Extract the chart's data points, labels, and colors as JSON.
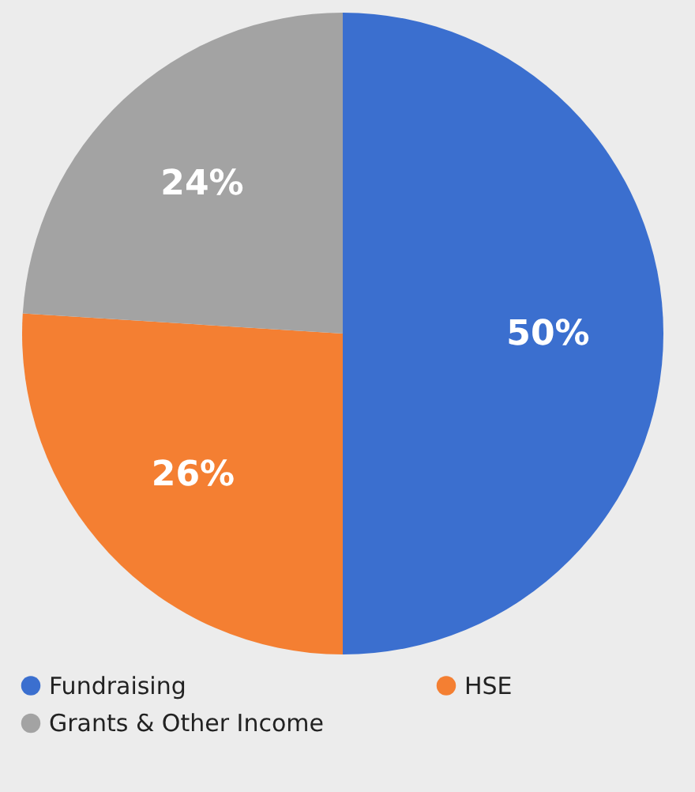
{
  "chart_data": {
    "type": "pie",
    "categories": [
      "Fundraising",
      "HSE",
      "Grants & Other Income"
    ],
    "values": [
      50,
      26,
      24
    ],
    "colors": [
      "#3b6fcf",
      "#f47f32",
      "#a3a3a3"
    ],
    "value_labels": [
      "50%",
      "26%",
      "24%"
    ],
    "legend": "bottom"
  }
}
